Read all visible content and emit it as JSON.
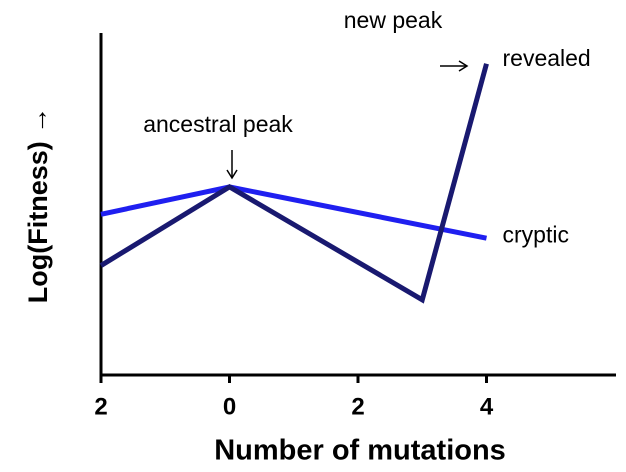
{
  "chart_data": {
    "type": "line",
    "xlabel": "Number of mutations",
    "ylabel": "Log(Fitness) →",
    "xlim": [
      -2,
      6
    ],
    "xticks": [
      {
        "value": -2,
        "label": "2"
      },
      0,
      2,
      4
    ],
    "ylim": [
      0,
      10
    ],
    "series": [
      {
        "name": "cryptic",
        "color": "#1f1ff0",
        "x": [
          -2,
          0,
          4
        ],
        "values": [
          4.7,
          5.5,
          4.0
        ]
      },
      {
        "name": "revealed",
        "color": "#191970",
        "x": [
          -2,
          0,
          3,
          4
        ],
        "values": [
          3.2,
          5.5,
          2.2,
          9.1
        ]
      }
    ],
    "annotations": [
      "ancestral peak",
      "new peak"
    ]
  }
}
